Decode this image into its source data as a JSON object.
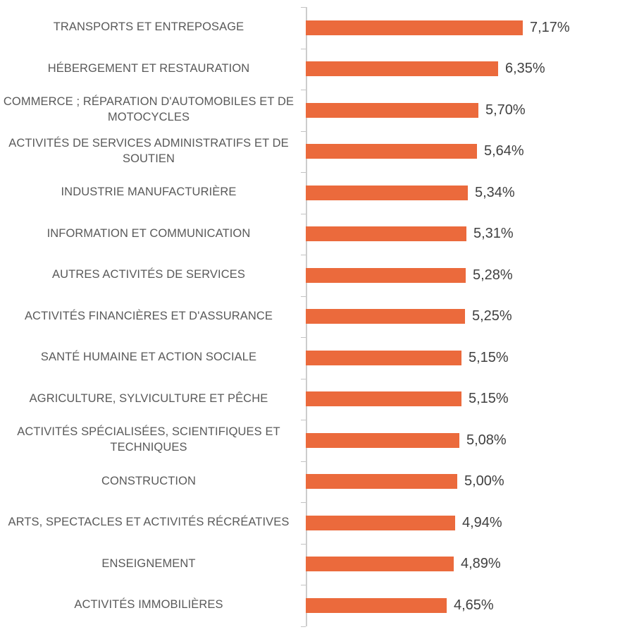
{
  "chart": {
    "bar_color": "#EB6A3C",
    "category_label_color": "#595959",
    "value_label_color": "#404040",
    "axis_color": "#CCCCCC"
  },
  "chart_data": {
    "type": "bar",
    "orientation": "horizontal",
    "title": "",
    "xlabel": "",
    "ylabel": "",
    "xlim": [
      0,
      8
    ],
    "grid": false,
    "legend": false,
    "value_format": "percent with comma decimal separator, 2 decimals",
    "categories": [
      "TRANSPORTS ET ENTREPOSAGE",
      "HÉBERGEMENT ET RESTAURATION",
      "COMMERCE ; RÉPARATION D'AUTOMOBILES ET DE MOTOCYCLES",
      "ACTIVITÉS DE SERVICES ADMINISTRATIFS ET DE SOUTIEN",
      "INDUSTRIE MANUFACTURIÈRE",
      "INFORMATION ET COMMUNICATION",
      "AUTRES ACTIVITÉS DE SERVICES",
      "ACTIVITÉS FINANCIÈRES ET D'ASSURANCE",
      "SANTÉ HUMAINE ET ACTION SOCIALE",
      "AGRICULTURE, SYLVICULTURE ET PÊCHE",
      "ACTIVITÉS SPÉCIALISÉES, SCIENTIFIQUES ET TECHNIQUES",
      "CONSTRUCTION",
      "ARTS, SPECTACLES ET ACTIVITÉS RÉCRÉATIVES",
      "ENSEIGNEMENT",
      "ACTIVITÉS IMMOBILIÈRES"
    ],
    "values": [
      7.17,
      6.35,
      5.7,
      5.64,
      5.34,
      5.31,
      5.28,
      5.25,
      5.15,
      5.15,
      5.08,
      5.0,
      4.94,
      4.89,
      4.65
    ],
    "value_labels": [
      "7,17%",
      "6,35%",
      "5,70%",
      "5,64%",
      "5,34%",
      "5,31%",
      "5,28%",
      "5,25%",
      "5,15%",
      "5,15%",
      "5,08%",
      "5,00%",
      "4,94%",
      "4,89%",
      "4,65%"
    ]
  }
}
